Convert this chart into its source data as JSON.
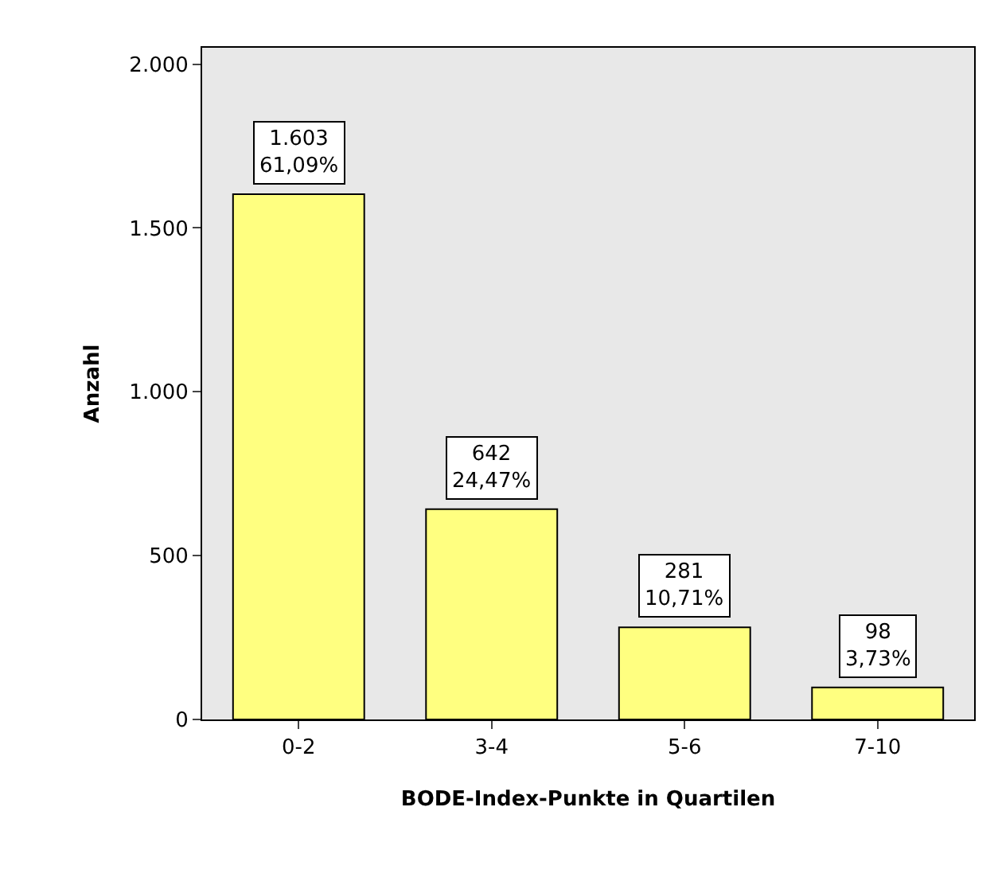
{
  "chart_data": {
    "type": "bar",
    "xlabel": "BODE-Index-Punkte in Quartilen",
    "ylabel": "Anzahl",
    "categories": [
      "0-2",
      "3-4",
      "5-6",
      "7-10"
    ],
    "values": [
      1603,
      642,
      281,
      98
    ],
    "value_labels": [
      "1.603\n61,09%",
      "642\n24,47%",
      "281\n10,71%",
      "98\n3,73%"
    ],
    "color": "#ffff80",
    "ylim": [
      0,
      2050
    ],
    "yticks": [
      {
        "value": 0,
        "label": "0"
      },
      {
        "value": 500,
        "label": "500"
      },
      {
        "value": 1000,
        "label": "1.000"
      },
      {
        "value": 1500,
        "label": "1.500"
      },
      {
        "value": 2000,
        "label": "2.000"
      }
    ],
    "grid": false,
    "legend": false
  }
}
